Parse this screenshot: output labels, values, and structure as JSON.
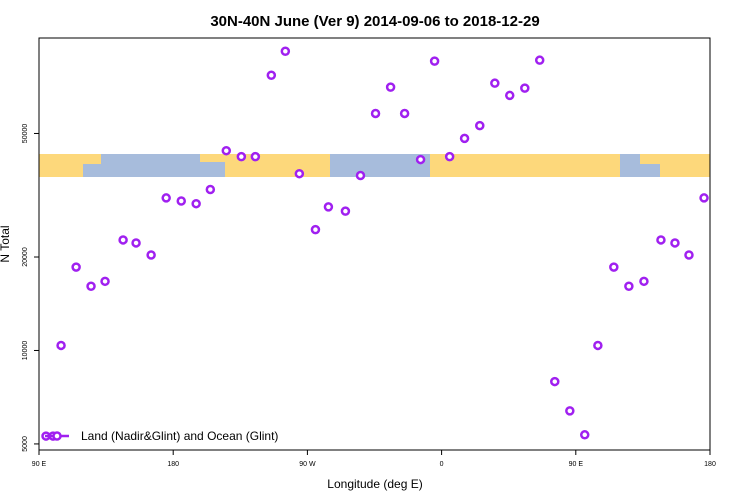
{
  "chart_data": {
    "type": "scatter",
    "title": "30N-40N June (Ver 9)   2014-09-06 to 2018-12-29",
    "x_label": "Longitude (deg E)",
    "y_label": "N Total",
    "log_y": true,
    "xlim": [
      90,
      540
    ],
    "ylim": [
      4780,
      101500
    ],
    "xticks": [
      {
        "value": 90,
        "label": "90 E"
      },
      180,
      {
        "value": 270,
        "label": "90 W"
      },
      {
        "value": 360,
        "label": "0"
      },
      {
        "value": 450,
        "label": "90 E"
      },
      {
        "value": 540,
        "label": "180"
      }
    ],
    "yticks": [
      5000,
      10000,
      20000,
      50000
    ],
    "legend_position": "bottom-left",
    "series": [
      {
        "name": "Land (Nadir&Glint) and Ocean (Glint)",
        "color": "#a020f0",
        "x": [
          94.7,
          99.4,
          104.8,
          114.9,
          124.9,
          134.3,
          146.4,
          155.1,
          165.2,
          175.3,
          185.4,
          195.4,
          204.9,
          215.6,
          225.7,
          235.1,
          245.8,
          255.2,
          264.6,
          275.4,
          284.1,
          295.5,
          305.6,
          315.7,
          325.8,
          335.2,
          345.9,
          355.3,
          365.4,
          375.4,
          385.6,
          395.7,
          405.7,
          415.8,
          425.8,
          435.9,
          446.0,
          456.0,
          464.8,
          475.5,
          485.6,
          495.7,
          507.1,
          516.5,
          525.9,
          536.0
        ],
        "values": [
          5300,
          5300,
          10380,
          18560,
          16100,
          16700,
          22700,
          22200,
          20300,
          31000,
          30300,
          29700,
          33000,
          44000,
          42100,
          42100,
          77000,
          92000,
          37100,
          24500,
          29000,
          28100,
          36600,
          58000,
          70500,
          58000,
          41200,
          85500,
          42100,
          48200,
          53000,
          72600,
          66300,
          70000,
          86100,
          7940,
          6390,
          5350,
          10380,
          18560,
          16100,
          16700,
          22700,
          22200,
          20300,
          31000
        ]
      }
    ]
  }
}
